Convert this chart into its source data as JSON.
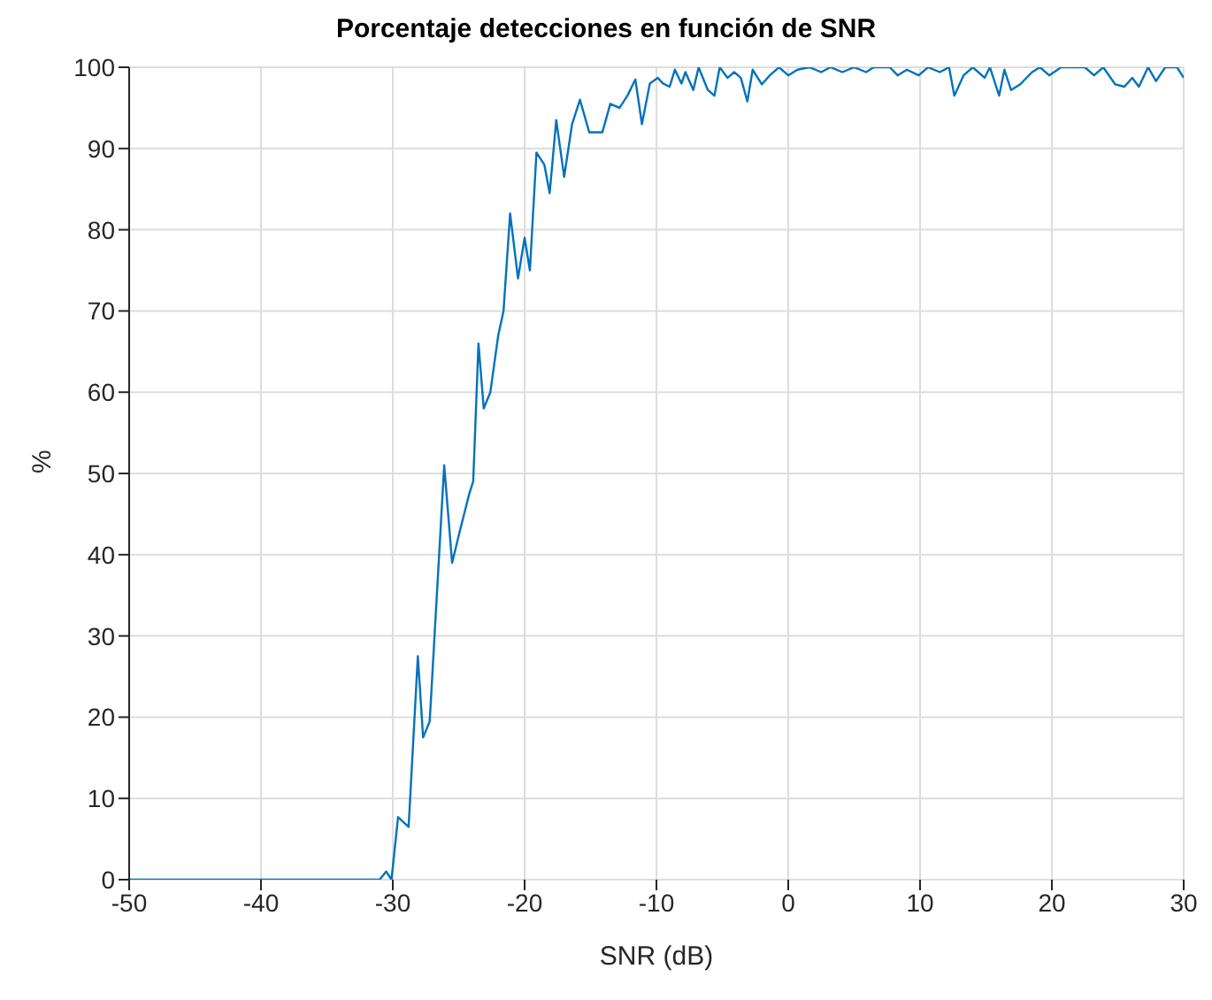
{
  "chart_data": {
    "type": "line",
    "title": "Porcentaje detecciones en función de SNR",
    "xlabel": "SNR (dB)",
    "ylabel": "%",
    "x": [
      -50,
      -45,
      -40,
      -35,
      -31,
      -30.5,
      -30.1,
      -29.6,
      -28.8,
      -28.1,
      -27.7,
      -27.2,
      -26.1,
      -25.5,
      -24.9,
      -24.2,
      -23.9,
      -23.5,
      -23.1,
      -22.6,
      -22.0,
      -21.6,
      -21.1,
      -20.5,
      -20.0,
      -19.6,
      -19.1,
      -18.5,
      -18.1,
      -17.6,
      -17.0,
      -16.4,
      -15.8,
      -15.1,
      -14.1,
      -13.5,
      -12.8,
      -12.2,
      -11.6,
      -11.1,
      -10.5,
      -9.9,
      -9.5,
      -9.0,
      -8.6,
      -8.1,
      -7.8,
      -7.2,
      -6.8,
      -6.1,
      -5.6,
      -5.2,
      -4.6,
      -4.1,
      -3.6,
      -3.1,
      -2.7,
      -2.0,
      -1.4,
      -0.7,
      0,
      0.7,
      1.6,
      2.5,
      3.2,
      4.1,
      5.0,
      5.9,
      6.5,
      7.7,
      8.3,
      9.0,
      9.9,
      10.6,
      11.5,
      12.2,
      12.6,
      13.3,
      14.0,
      14.9,
      15.3,
      16.0,
      16.4,
      16.9,
      17.6,
      18.5,
      19.1,
      19.8,
      20.7,
      22.5,
      23.2,
      23.9,
      24.8,
      25.5,
      26.1,
      26.6,
      27.3,
      27.9,
      28.6,
      29.5,
      30
    ],
    "series": [
      {
        "color": "#0072bd",
        "values": [
          0,
          0,
          0,
          0,
          0,
          1,
          0,
          7.7,
          6.5,
          27.5,
          17.5,
          19.5,
          51,
          39,
          43,
          47.5,
          49,
          66,
          58,
          60,
          67,
          70,
          82,
          74,
          79,
          75,
          89.5,
          88,
          84.5,
          93.5,
          86.5,
          93,
          96,
          92,
          92,
          95.5,
          95,
          96.5,
          98.5,
          93,
          98,
          98.7,
          98,
          97.6,
          99.7,
          98,
          99.4,
          97.2,
          100,
          97.2,
          96.5,
          100,
          98.7,
          99.4,
          98.7,
          95.8,
          99.7,
          97.9,
          99,
          100,
          99,
          99.7,
          100,
          99.4,
          100,
          99.4,
          100,
          99.4,
          100,
          100,
          99,
          99.7,
          99,
          100,
          99.4,
          100,
          96.5,
          99,
          100,
          98.7,
          100,
          96.5,
          99.7,
          97.2,
          97.9,
          99.4,
          100,
          99,
          100,
          100,
          99,
          100,
          97.9,
          97.6,
          98.7,
          97.6,
          100,
          98.3,
          100,
          100,
          98.7
        ]
      }
    ],
    "xlim": [
      -50,
      30
    ],
    "xticks": [
      -50,
      -40,
      -30,
      -20,
      -10,
      0,
      10,
      20,
      30
    ],
    "ylim": [
      0,
      100
    ],
    "yticks": [
      0,
      10,
      20,
      30,
      40,
      50,
      60,
      70,
      80,
      90,
      100
    ],
    "grid": true,
    "line_style": "solid",
    "marker": "none"
  }
}
